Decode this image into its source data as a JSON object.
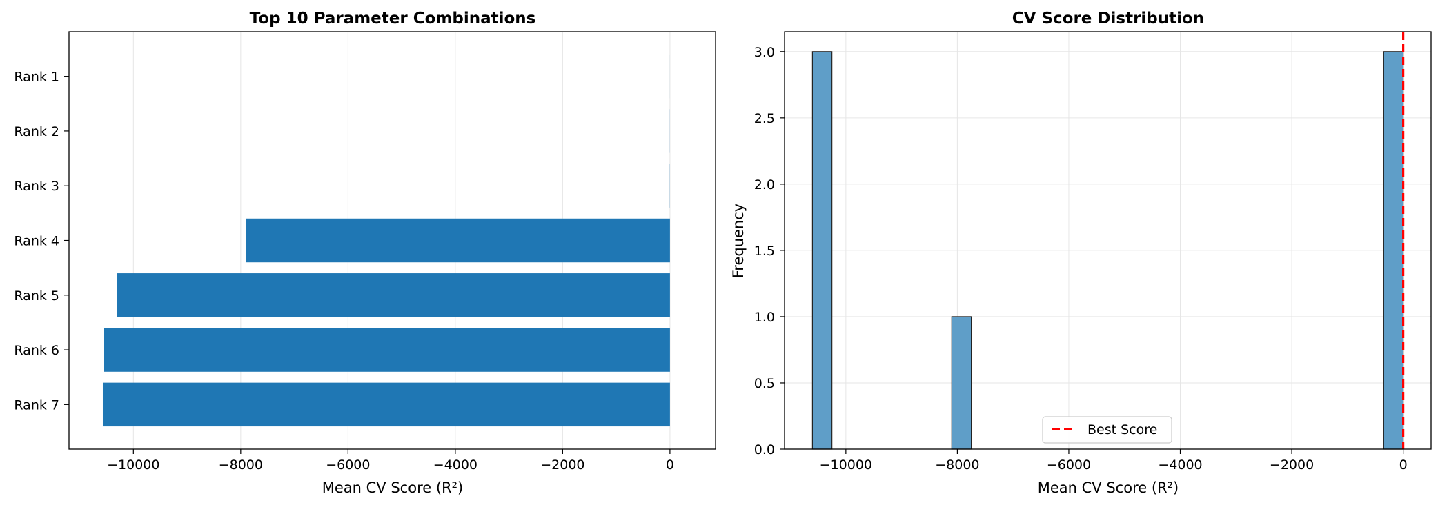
{
  "chart_data": [
    {
      "type": "bar",
      "orientation": "horizontal",
      "title": "Top 10 Parameter Combinations",
      "xlabel": "Mean CV Score (R²)",
      "ylabel": "",
      "categories": [
        "Rank 1",
        "Rank 2",
        "Rank 3",
        "Rank 4",
        "Rank 5",
        "Rank 6",
        "Rank 7"
      ],
      "values": [
        -0.5,
        -1.5,
        -2.5,
        -7900,
        -10300,
        -10550,
        -10570
      ],
      "xlim": [
        -11200,
        850
      ],
      "xticks": [
        -10000,
        -8000,
        -6000,
        -4000,
        -2000,
        0
      ],
      "xtick_labels": [
        "−10000",
        "−8000",
        "−6000",
        "−4000",
        "−2000",
        "0"
      ],
      "bar_color": "#1f77b4",
      "grid": true
    },
    {
      "type": "bar",
      "subtype": "histogram",
      "title": "CV Score Distribution",
      "xlabel": "Mean CV Score (R²)",
      "ylabel": "Frequency",
      "bins": [
        {
          "x0": -10600,
          "x1": -10250,
          "count": 3
        },
        {
          "x0": -8100,
          "x1": -7750,
          "count": 1
        },
        {
          "x0": -350,
          "x1": 0,
          "count": 3
        }
      ],
      "xlim": [
        -11100,
        500
      ],
      "ylim": [
        0,
        3.15
      ],
      "xticks": [
        -10000,
        -8000,
        -6000,
        -4000,
        -2000,
        0
      ],
      "xtick_labels": [
        "−10000",
        "−8000",
        "−6000",
        "−4000",
        "−2000",
        "0"
      ],
      "yticks": [
        0.0,
        0.5,
        1.0,
        1.5,
        2.0,
        2.5,
        3.0
      ],
      "ytick_labels": [
        "0.0",
        "0.5",
        "1.0",
        "1.5",
        "2.0",
        "2.5",
        "3.0"
      ],
      "best_score": 0,
      "legend": {
        "label": "Best Score",
        "location": "lower-center"
      },
      "bar_color": "#5f9ec8",
      "line_color": "#ff0000",
      "grid": true
    }
  ]
}
